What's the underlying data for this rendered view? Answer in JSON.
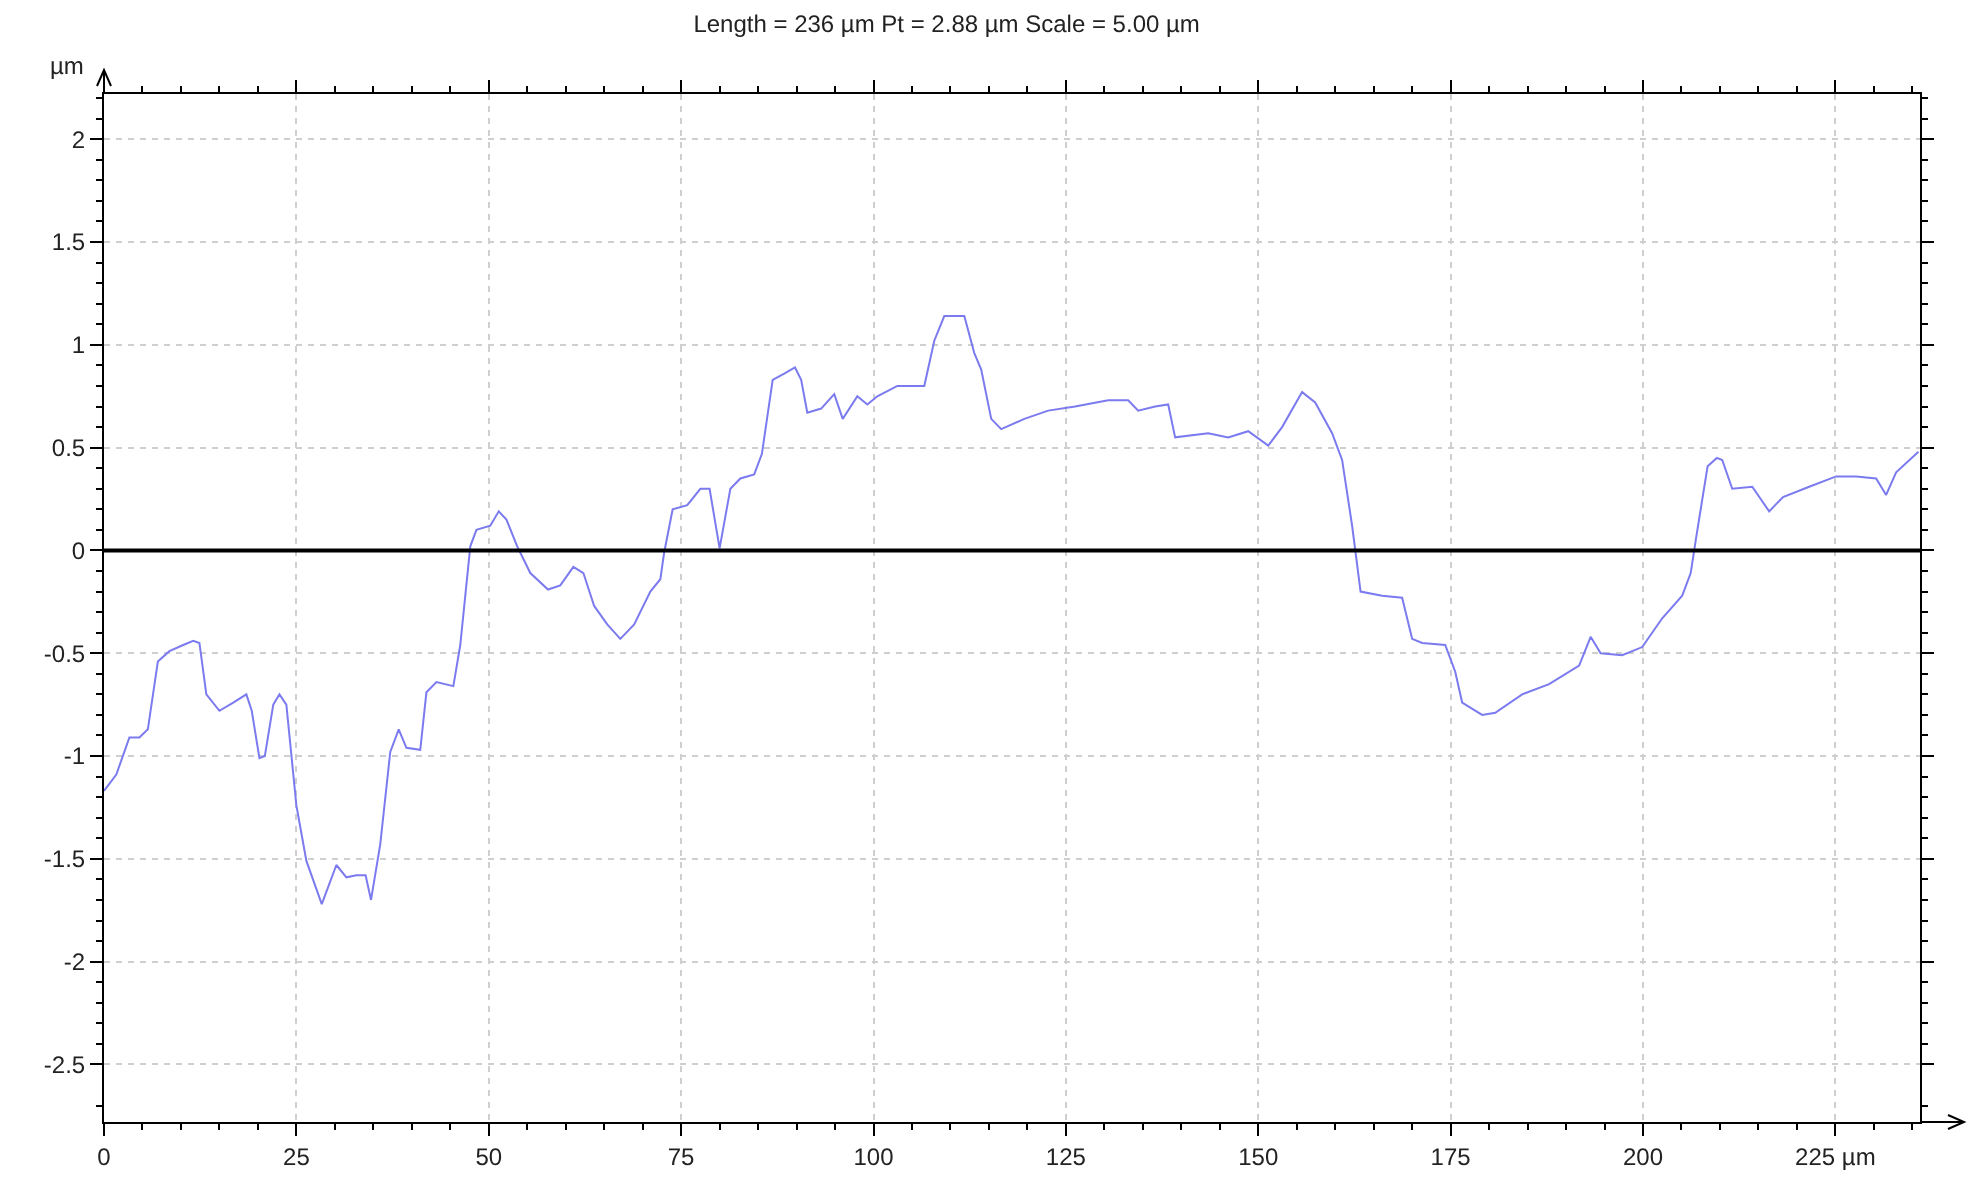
{
  "chart_data": {
    "type": "line",
    "title": "Length = 236 µm Pt = 2.88 µm Scale = 5.00 µm",
    "ylabel": "µm",
    "x": [
      0,
      1.6,
      3.3,
      4.6,
      5.7,
      7.0,
      8.5,
      10.3,
      11.6,
      12.4,
      13.3,
      15.0,
      16.8,
      18.5,
      19.2,
      20.2,
      20.9,
      22.0,
      22.8,
      23.7,
      25.0,
      26.3,
      28.3,
      30.2,
      31.5,
      32.8,
      34.0,
      34.7,
      35.9,
      37.2,
      38.3,
      39.3,
      41.1,
      41.9,
      43.2,
      45.4,
      46.3,
      47.6,
      48.4,
      50.2,
      51.3,
      52.3,
      53.7,
      55.4,
      57.7,
      59.3,
      61.0,
      62.3,
      63.7,
      65.4,
      67.1,
      68.9,
      71.0,
      72.3,
      72.8,
      73.9,
      75.8,
      77.5,
      78.7,
      80.0,
      81.4,
      82.7,
      84.5,
      85.5,
      86.9,
      88.4,
      89.8,
      90.6,
      91.4,
      93.2,
      94.9,
      96.0,
      97.9,
      99.2,
      100.5,
      103.1,
      106.6,
      107.9,
      109.2,
      111.8,
      113.1,
      114.0,
      115.3,
      116.6,
      119.6,
      122.7,
      126.2,
      130.5,
      133.1,
      134.4,
      136.6,
      138.3,
      139.2,
      143.5,
      146.1,
      148.7,
      151.3,
      153.1,
      155.7,
      157.4,
      159.6,
      160.9,
      162.2,
      163.3,
      166.1,
      168.7,
      170.0,
      171.3,
      174.3,
      175.6,
      176.5,
      179.1,
      180.8,
      184.3,
      187.8,
      191.7,
      193.2,
      194.5,
      197.3,
      199.9,
      202.5,
      205.1,
      206.2,
      206.9,
      208.4,
      209.6,
      210.3,
      211.6,
      214.2,
      216.4,
      218.2,
      221.6,
      225.1,
      227.7,
      230.3,
      231.6,
      232.9,
      235.8
    ],
    "series": [
      {
        "color": "#7b7bef",
        "values": [
          -1.17,
          -1.09,
          -0.91,
          -0.91,
          -0.87,
          -0.54,
          -0.49,
          -0.46,
          -0.44,
          -0.45,
          -0.7,
          -0.78,
          -0.74,
          -0.7,
          -0.78,
          -1.01,
          -1.0,
          -0.75,
          -0.7,
          -0.75,
          -1.24,
          -1.51,
          -1.72,
          -1.53,
          -1.59,
          -1.58,
          -1.58,
          -1.7,
          -1.43,
          -0.98,
          -0.87,
          -0.96,
          -0.97,
          -0.69,
          -0.64,
          -0.66,
          -0.46,
          0.02,
          0.1,
          0.12,
          0.19,
          0.15,
          0.02,
          -0.11,
          -0.19,
          -0.17,
          -0.08,
          -0.11,
          -0.27,
          -0.36,
          -0.43,
          -0.36,
          -0.2,
          -0.14,
          -0.01,
          0.2,
          0.22,
          0.3,
          0.3,
          0.01,
          0.3,
          0.35,
          0.37,
          0.47,
          0.83,
          0.86,
          0.89,
          0.83,
          0.67,
          0.69,
          0.76,
          0.64,
          0.75,
          0.71,
          0.75,
          0.8,
          0.8,
          1.02,
          1.14,
          1.14,
          0.96,
          0.88,
          0.64,
          0.59,
          0.64,
          0.68,
          0.7,
          0.73,
          0.73,
          0.68,
          0.7,
          0.71,
          0.55,
          0.57,
          0.55,
          0.58,
          0.51,
          0.6,
          0.77,
          0.72,
          0.57,
          0.44,
          0.12,
          -0.2,
          -0.22,
          -0.23,
          -0.43,
          -0.45,
          -0.46,
          -0.59,
          -0.74,
          -0.8,
          -0.79,
          -0.7,
          -0.65,
          -0.56,
          -0.42,
          -0.5,
          -0.51,
          -0.47,
          -0.33,
          -0.22,
          -0.11,
          0.06,
          0.41,
          0.45,
          0.44,
          0.3,
          0.31,
          0.19,
          0.26,
          0.31,
          0.36,
          0.36,
          0.35,
          0.27,
          0.38,
          0.48
        ]
      }
    ],
    "xlim": [
      0,
      236
    ],
    "ylim": [
      -2.78,
      2.22
    ],
    "xticks": [
      0,
      {
        "value": 5,
        "label": null
      },
      {
        "value": 10,
        "label": null
      },
      {
        "value": 15,
        "label": null
      },
      {
        "value": 20,
        "label": null
      },
      25,
      {
        "value": 30,
        "label": null
      },
      {
        "value": 35,
        "label": null
      },
      {
        "value": 40,
        "label": null
      },
      {
        "value": 45,
        "label": null
      },
      50,
      {
        "value": 55,
        "label": null
      },
      {
        "value": 60,
        "label": null
      },
      {
        "value": 65,
        "label": null
      },
      {
        "value": 70,
        "label": null
      },
      75,
      {
        "value": 80,
        "label": null
      },
      {
        "value": 85,
        "label": null
      },
      {
        "value": 90,
        "label": null
      },
      {
        "value": 95,
        "label": null
      },
      100,
      {
        "value": 105,
        "label": null
      },
      {
        "value": 110,
        "label": null
      },
      {
        "value": 115,
        "label": null
      },
      {
        "value": 120,
        "label": null
      },
      125,
      {
        "value": 130,
        "label": null
      },
      {
        "value": 135,
        "label": null
      },
      {
        "value": 140,
        "label": null
      },
      {
        "value": 145,
        "label": null
      },
      150,
      {
        "value": 155,
        "label": null
      },
      {
        "value": 160,
        "label": null
      },
      {
        "value": 165,
        "label": null
      },
      {
        "value": 170,
        "label": null
      },
      175,
      {
        "value": 180,
        "label": null
      },
      {
        "value": 185,
        "label": null
      },
      {
        "value": 190,
        "label": null
      },
      {
        "value": 195,
        "label": null
      },
      200,
      {
        "value": 205,
        "label": null
      },
      {
        "value": 210,
        "label": null
      },
      {
        "value": 215,
        "label": null
      },
      {
        "value": 220,
        "label": null
      },
      {
        "value": 225,
        "label": "225 µm"
      },
      {
        "value": 230,
        "label": null
      },
      {
        "value": 235,
        "label": null
      }
    ],
    "yticks": [
      {
        "value": -2.7,
        "label": null
      },
      -2.5,
      {
        "value": -2.4,
        "label": null
      },
      {
        "value": -2.3,
        "label": null
      },
      {
        "value": -2.2,
        "label": null
      },
      {
        "value": -2.1,
        "label": null
      },
      -2,
      {
        "value": -1.9,
        "label": null
      },
      {
        "value": -1.8,
        "label": null
      },
      {
        "value": -1.7,
        "label": null
      },
      {
        "value": -1.6,
        "label": null
      },
      -1.5,
      {
        "value": -1.4,
        "label": null
      },
      {
        "value": -1.3,
        "label": null
      },
      {
        "value": -1.2,
        "label": null
      },
      {
        "value": -1.1,
        "label": null
      },
      -1,
      {
        "value": -0.9,
        "label": null
      },
      {
        "value": -0.8,
        "label": null
      },
      {
        "value": -0.7,
        "label": null
      },
      {
        "value": -0.6,
        "label": null
      },
      -0.5,
      {
        "value": -0.4,
        "label": null
      },
      {
        "value": -0.3,
        "label": null
      },
      {
        "value": -0.2,
        "label": null
      },
      {
        "value": -0.1,
        "label": null
      },
      0,
      {
        "value": 0.1,
        "label": null
      },
      {
        "value": 0.2,
        "label": null
      },
      {
        "value": 0.3,
        "label": null
      },
      {
        "value": 0.4,
        "label": null
      },
      0.5,
      {
        "value": 0.6,
        "label": null
      },
      {
        "value": 0.7,
        "label": null
      },
      {
        "value": 0.8,
        "label": null
      },
      {
        "value": 0.9,
        "label": null
      },
      1,
      {
        "value": 1.1,
        "label": null
      },
      {
        "value": 1.2,
        "label": null
      },
      {
        "value": 1.3,
        "label": null
      },
      {
        "value": 1.4,
        "label": null
      },
      1.5,
      {
        "value": 1.6,
        "label": null
      },
      {
        "value": 1.7,
        "label": null
      },
      {
        "value": 1.8,
        "label": null
      },
      {
        "value": 1.9,
        "label": null
      },
      2,
      {
        "value": 2.1,
        "label": null
      },
      {
        "value": 2.2,
        "label": null
      }
    ],
    "grid": true,
    "ref_lines": [
      {
        "axis": "y",
        "value": 0,
        "color": "#000000"
      }
    ]
  }
}
